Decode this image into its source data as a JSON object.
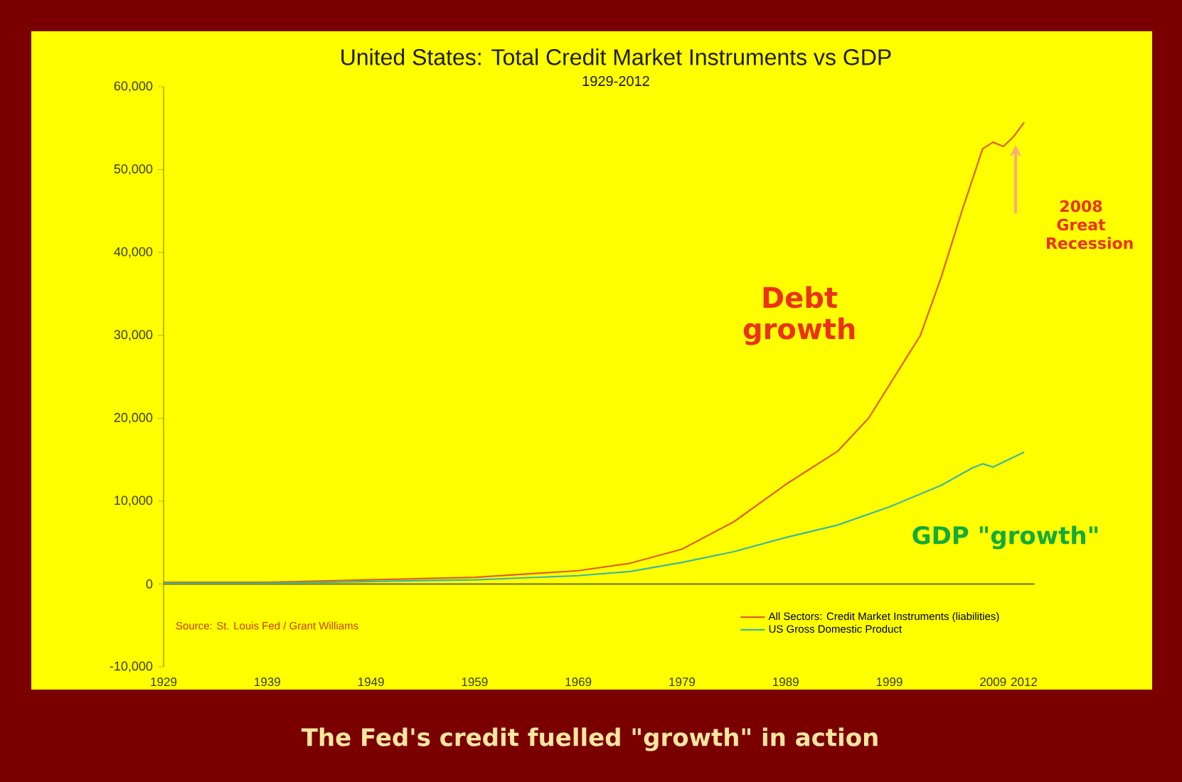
{
  "chart_data": {
    "type": "line",
    "title": "United States: Total Credit Market Instruments vs GDP",
    "subtitle": "1929-2012",
    "series": [
      {
        "name": "All Sectors: Credit Market Instruments (liabilities)",
        "color": "#e0601a",
        "x": [
          1929,
          1939,
          1949,
          1959,
          1969,
          1974,
          1979,
          1984,
          1989,
          1994,
          1997,
          2000,
          2002,
          2004,
          2006,
          2008,
          2009,
          2010,
          2011,
          2012
        ],
        "values": [
          200,
          200,
          500,
          800,
          1600,
          2500,
          4200,
          7500,
          12000,
          16000,
          20000,
          26000,
          30000,
          37000,
          45000,
          52500,
          53300,
          52800,
          54000,
          55700
        ]
      },
      {
        "name": "US Gross Domestic Product",
        "color": "#3cb8a0",
        "x": [
          1929,
          1939,
          1949,
          1959,
          1969,
          1974,
          1979,
          1984,
          1989,
          1994,
          1999,
          2004,
          2007,
          2008,
          2009,
          2010,
          2011,
          2012
        ],
        "values": [
          100,
          100,
          300,
          500,
          1000,
          1500,
          2600,
          3900,
          5600,
          7100,
          9300,
          11900,
          14000,
          14500,
          14100,
          14700,
          15300,
          15900
        ]
      }
    ],
    "xlim": [
      1929,
      2012
    ],
    "xticks": [
      1929,
      1939,
      1949,
      1959,
      1969,
      1979,
      1989,
      1999,
      2009,
      2012
    ],
    "ylim": [
      -10000,
      60000
    ],
    "yticks": [
      {
        "value": -10000,
        "label": "-10,000"
      },
      {
        "value": 0,
        "label": "0"
      },
      {
        "value": 10000,
        "label": "10,000"
      },
      {
        "value": 20000,
        "label": "20,000"
      },
      {
        "value": 30000,
        "label": "30,000"
      },
      {
        "value": 40000,
        "label": "40,000"
      },
      {
        "value": 50000,
        "label": "50,000"
      },
      {
        "value": 60000,
        "label": "60,000"
      }
    ],
    "ref_lines": [
      {
        "axis": "y",
        "value": 0,
        "color": "#8a8a10"
      }
    ],
    "grid": false,
    "legend": "bottom right",
    "marker": "none",
    "line_style": "solid",
    "annotations": [
      "Source: St. Louis Fed / Grant Williams",
      "Debt growth",
      "GDP \"growth\"",
      "2008 Great Recession",
      "The Fed's credit fuelled \"growth\" in action"
    ]
  }
}
